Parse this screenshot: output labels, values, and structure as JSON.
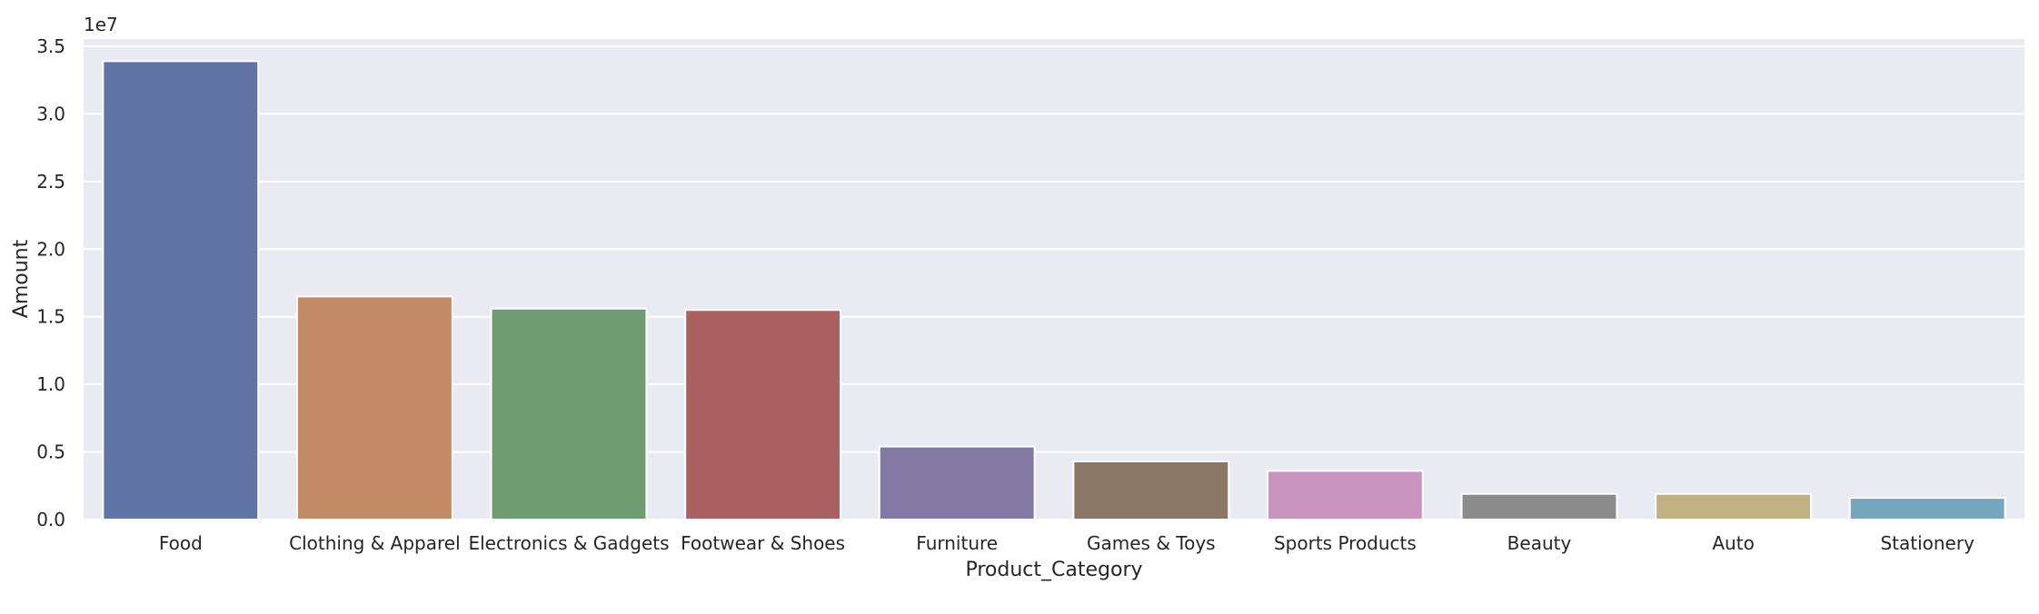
{
  "chart_data": {
    "type": "bar",
    "title": "",
    "xlabel": "Product_Category",
    "ylabel": "Amount",
    "y_offset_label": "1e7",
    "ylim": [
      0,
      3.5
    ],
    "y_ticks": [
      "0.0",
      "0.5",
      "1.0",
      "1.5",
      "2.0",
      "2.5",
      "3.0",
      "3.5"
    ],
    "categories": [
      "Food",
      "Clothing & Apparel",
      "Electronics & Gadgets",
      "Footwear & Shoes",
      "Furniture",
      "Games & Toys",
      "Sports Products",
      "Beauty",
      "Auto",
      "Stationery"
    ],
    "values": [
      3.39,
      1.65,
      1.56,
      1.55,
      0.54,
      0.43,
      0.36,
      0.19,
      0.19,
      0.16
    ],
    "colors": [
      "#5f73a4",
      "#c38a66",
      "#6c9c70",
      "#a96162",
      "#8379a5",
      "#8b7766",
      "#c995be",
      "#8c8c8c",
      "#c1b182",
      "#74a7bd"
    ],
    "background": "#eaeaf2",
    "grid": true,
    "legend": "none"
  }
}
